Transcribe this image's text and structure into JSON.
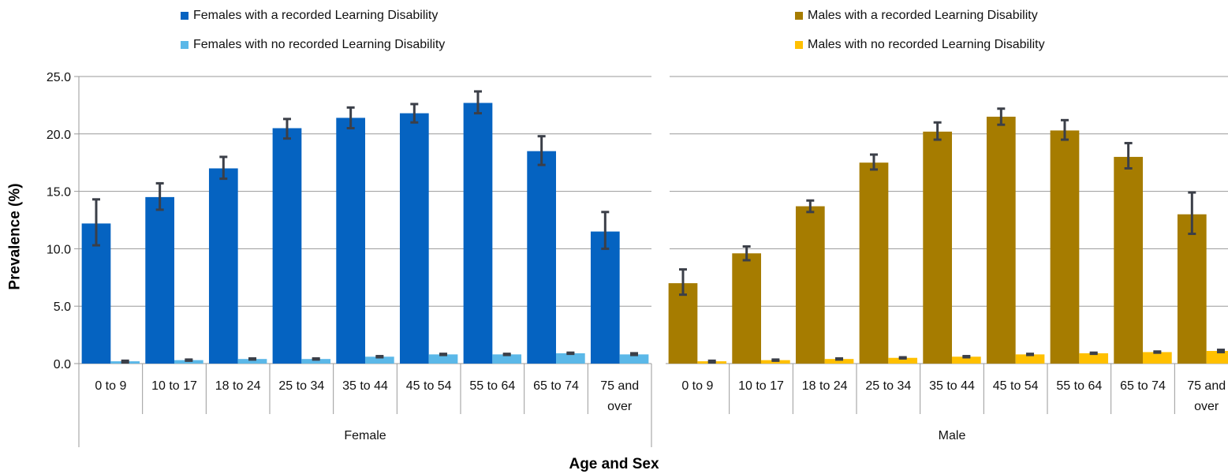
{
  "chart_data": {
    "type": "bar",
    "xlabel": "Age and Sex",
    "ylabel": "Prevalence (%)",
    "ylim": [
      0,
      25
    ],
    "yticks": [
      "0.0",
      "5.0",
      "10.0",
      "15.0",
      "20.0",
      "25.0"
    ],
    "grid": true,
    "legend_position": "top",
    "categories": [
      "0 to 9",
      "10 to 17",
      "18 to 24",
      "25 to 34",
      "35 to 44",
      "45 to 54",
      "55 to 64",
      "65 to 74",
      "75 and over"
    ],
    "groups": [
      {
        "name": "Female",
        "series": [
          {
            "name": "Females with a recorded Learning Disability",
            "color": "#0563C1",
            "values": [
              12.2,
              14.5,
              17.0,
              20.5,
              21.4,
              21.8,
              22.7,
              18.5,
              11.5
            ],
            "error_low": [
              10.3,
              13.4,
              16.1,
              19.6,
              20.5,
              21.0,
              21.8,
              17.3,
              10.0
            ],
            "error_high": [
              14.3,
              15.7,
              18.0,
              21.3,
              22.3,
              22.6,
              23.7,
              19.8,
              13.2
            ]
          },
          {
            "name": "Females with no recorded Learning Disability",
            "color": "#5BB8E8",
            "values": [
              0.2,
              0.3,
              0.4,
              0.4,
              0.6,
              0.8,
              0.8,
              0.9,
              0.8
            ],
            "error_low": [
              0.1,
              0.25,
              0.35,
              0.35,
              0.55,
              0.75,
              0.75,
              0.85,
              0.75
            ],
            "error_high": [
              0.25,
              0.35,
              0.45,
              0.45,
              0.65,
              0.85,
              0.85,
              0.95,
              0.9
            ]
          }
        ]
      },
      {
        "name": "Male",
        "series": [
          {
            "name": "Males with a recorded Learning Disability",
            "color": "#A67C00",
            "values": [
              7.0,
              9.6,
              13.7,
              17.5,
              20.2,
              21.5,
              20.3,
              18.0,
              13.0
            ],
            "error_low": [
              6.0,
              9.0,
              13.2,
              16.9,
              19.5,
              20.8,
              19.5,
              17.0,
              11.3
            ],
            "error_high": [
              8.2,
              10.2,
              14.2,
              18.2,
              21.0,
              22.2,
              21.2,
              19.2,
              14.9
            ]
          },
          {
            "name": "Males with no recorded Learning Disability",
            "color": "#FFC000",
            "values": [
              0.2,
              0.3,
              0.4,
              0.5,
              0.6,
              0.8,
              0.9,
              1.0,
              1.1
            ],
            "error_low": [
              0.1,
              0.25,
              0.35,
              0.45,
              0.55,
              0.75,
              0.85,
              0.95,
              1.0
            ],
            "error_high": [
              0.25,
              0.35,
              0.45,
              0.55,
              0.65,
              0.85,
              0.95,
              1.05,
              1.2
            ]
          }
        ]
      }
    ]
  }
}
